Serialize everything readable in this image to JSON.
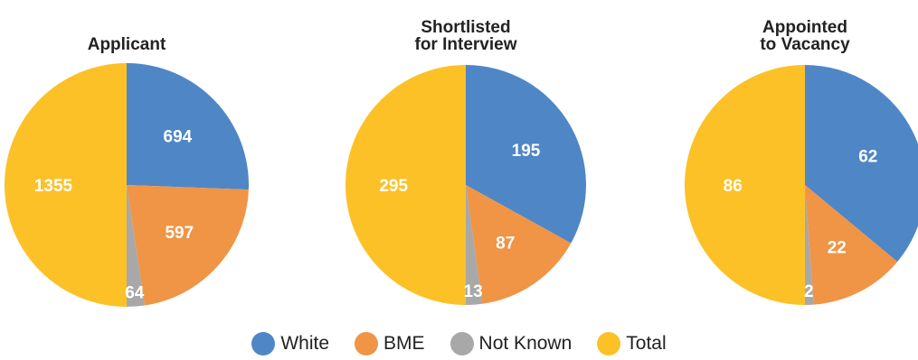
{
  "colors": {
    "White": "#4f86c6",
    "BME": "#f09445",
    "Not Known": "#a8a8a8",
    "Total": "#fbc127"
  },
  "legend": {
    "items": [
      "White",
      "BME",
      "Not Known",
      "Total"
    ]
  },
  "chart_data": [
    {
      "type": "pie",
      "title": [
        "Applicant"
      ],
      "categories": [
        "White",
        "BME",
        "Not Known",
        "Total"
      ],
      "values": [
        694,
        597,
        64,
        1355
      ]
    },
    {
      "type": "pie",
      "title": [
        "Shortlisted",
        "for Interview"
      ],
      "categories": [
        "White",
        "BME",
        "Not Known",
        "Total"
      ],
      "values": [
        195,
        87,
        13,
        295
      ]
    },
    {
      "type": "pie",
      "title": [
        "Appointed",
        "to Vacancy"
      ],
      "categories": [
        "White",
        "BME",
        "Not Known",
        "Total"
      ],
      "values": [
        62,
        22,
        2,
        86
      ]
    }
  ]
}
